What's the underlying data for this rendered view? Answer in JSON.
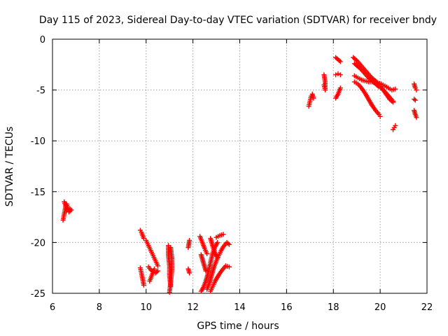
{
  "chart_data": {
    "type": "scatter",
    "title": "Day 115 of 2023, Sidereal Day-to-day VTEC variation (SDTVAR) for receiver bndy",
    "xlabel": "GPS time / hours",
    "ylabel": "SDTVAR / TECUs",
    "xlim": [
      6,
      22
    ],
    "ylim": [
      -25,
      0
    ],
    "xticks": [
      6,
      8,
      10,
      12,
      14,
      16,
      18,
      20,
      22
    ],
    "xtick_labels": [
      "6",
      "8",
      "10",
      "12",
      "14",
      "16",
      "18",
      "20",
      "22"
    ],
    "yticks": [
      0,
      -5,
      -10,
      -15,
      -20,
      -25
    ],
    "ytick_labels": [
      "0",
      "-5",
      "-10",
      "-15",
      "-20",
      "-25"
    ],
    "grid": true,
    "marker": "+",
    "color": "#ff0000",
    "series": [
      {
        "name": "SDTVAR",
        "segments": [
          [
            [
              6.45,
              -17.8
            ],
            [
              6.5,
              -17.2
            ],
            [
              6.55,
              -16.6
            ],
            [
              6.6,
              -16.2
            ],
            [
              6.65,
              -16.6
            ],
            [
              6.7,
              -16.9
            ],
            [
              6.75,
              -16.7
            ]
          ],
          [
            [
              6.5,
              -16.0
            ],
            [
              6.55,
              -16.3
            ],
            [
              6.6,
              -16.9
            ],
            [
              6.7,
              -17.0
            ],
            [
              6.8,
              -16.8
            ]
          ],
          [
            [
              9.75,
              -18.8
            ],
            [
              9.8,
              -19.0
            ],
            [
              9.85,
              -19.3
            ],
            [
              9.9,
              -19.6
            ]
          ],
          [
            [
              9.75,
              -22.5
            ],
            [
              9.8,
              -23.0
            ],
            [
              9.85,
              -23.6
            ],
            [
              9.9,
              -24.2
            ]
          ],
          [
            [
              10.0,
              -19.8
            ],
            [
              10.1,
              -20.3
            ],
            [
              10.2,
              -20.8
            ],
            [
              10.3,
              -21.3
            ],
            [
              10.4,
              -21.8
            ],
            [
              10.5,
              -22.3
            ]
          ],
          [
            [
              10.1,
              -22.4
            ],
            [
              10.2,
              -22.7
            ],
            [
              10.3,
              -22.9
            ],
            [
              10.4,
              -23.0
            ],
            [
              10.5,
              -22.8
            ]
          ],
          [
            [
              10.15,
              -23.8
            ],
            [
              10.25,
              -23.2
            ],
            [
              10.35,
              -22.6
            ]
          ],
          [
            [
              10.95,
              -20.3
            ],
            [
              10.95,
              -21.3
            ],
            [
              11.0,
              -22.3
            ],
            [
              11.0,
              -23.3
            ],
            [
              11.05,
              -24.3
            ]
          ],
          [
            [
              11.0,
              -24.9
            ],
            [
              11.05,
              -23.9
            ],
            [
              11.1,
              -22.8
            ],
            [
              11.1,
              -21.6
            ],
            [
              11.05,
              -20.5
            ]
          ],
          [
            [
              11.8,
              -20.5
            ],
            [
              11.85,
              -19.8
            ]
          ],
          [
            [
              11.8,
              -22.6
            ],
            [
              11.85,
              -23.0
            ]
          ],
          [
            [
              12.3,
              -19.4
            ],
            [
              12.4,
              -20.0
            ],
            [
              12.5,
              -20.6
            ],
            [
              12.6,
              -21.1
            ]
          ],
          [
            [
              12.35,
              -21.2
            ],
            [
              12.45,
              -22.0
            ],
            [
              12.55,
              -22.8
            ]
          ],
          [
            [
              12.35,
              -24.8
            ],
            [
              12.45,
              -24.4
            ],
            [
              12.55,
              -23.8
            ],
            [
              12.65,
              -23.0
            ],
            [
              12.75,
              -22.0
            ],
            [
              12.85,
              -21.0
            ],
            [
              12.95,
              -20.4
            ],
            [
              13.05,
              -20.0
            ]
          ],
          [
            [
              12.6,
              -24.6
            ],
            [
              12.7,
              -24.0
            ],
            [
              12.8,
              -23.2
            ],
            [
              12.9,
              -22.4
            ],
            [
              13.0,
              -21.8
            ],
            [
              13.1,
              -21.3
            ],
            [
              13.2,
              -20.8
            ],
            [
              13.3,
              -20.4
            ],
            [
              13.45,
              -20.0
            ],
            [
              13.55,
              -20.2
            ]
          ],
          [
            [
              12.75,
              -24.8
            ],
            [
              12.85,
              -24.3
            ],
            [
              12.95,
              -23.8
            ],
            [
              13.1,
              -23.2
            ],
            [
              13.25,
              -22.7
            ],
            [
              13.4,
              -22.3
            ],
            [
              13.55,
              -22.4
            ]
          ],
          [
            [
              12.75,
              -19.6
            ],
            [
              12.85,
              -20.4
            ],
            [
              12.95,
              -21.1
            ],
            [
              13.05,
              -21.5
            ]
          ],
          [
            [
              13.0,
              -19.5
            ],
            [
              13.15,
              -19.3
            ],
            [
              13.3,
              -19.2
            ]
          ],
          [
            [
              16.95,
              -6.6
            ],
            [
              17.0,
              -6.1
            ],
            [
              17.05,
              -5.6
            ],
            [
              17.1,
              -5.4
            ],
            [
              17.15,
              -5.8
            ]
          ],
          [
            [
              17.6,
              -3.5
            ],
            [
              17.65,
              -4.2
            ],
            [
              17.65,
              -5.0
            ],
            [
              17.6,
              -4.5
            ]
          ],
          [
            [
              18.1,
              -1.8
            ],
            [
              18.2,
              -2.0
            ],
            [
              18.3,
              -2.2
            ]
          ],
          [
            [
              18.1,
              -3.5
            ],
            [
              18.2,
              -3.4
            ],
            [
              18.3,
              -3.5
            ]
          ],
          [
            [
              18.1,
              -5.8
            ],
            [
              18.2,
              -5.4
            ],
            [
              18.3,
              -4.8
            ]
          ],
          [
            [
              18.85,
              -1.8
            ],
            [
              19.0,
              -2.1
            ],
            [
              19.15,
              -2.5
            ],
            [
              19.3,
              -2.9
            ],
            [
              19.45,
              -3.3
            ],
            [
              19.6,
              -3.7
            ],
            [
              19.75,
              -4.0
            ],
            [
              19.9,
              -4.3
            ],
            [
              20.05,
              -4.4
            ],
            [
              20.2,
              -4.6
            ],
            [
              20.35,
              -4.8
            ],
            [
              20.5,
              -5.0
            ],
            [
              20.65,
              -4.9
            ]
          ],
          [
            [
              18.9,
              -2.4
            ],
            [
              19.05,
              -2.7
            ],
            [
              19.2,
              -3.0
            ],
            [
              19.35,
              -3.4
            ],
            [
              19.5,
              -3.8
            ],
            [
              19.65,
              -4.1
            ],
            [
              19.8,
              -4.4
            ],
            [
              19.95,
              -4.7
            ],
            [
              20.1,
              -4.9
            ],
            [
              20.25,
              -5.3
            ],
            [
              20.4,
              -5.7
            ],
            [
              20.55,
              -6.1
            ]
          ],
          [
            [
              18.9,
              -3.6
            ],
            [
              19.05,
              -3.8
            ],
            [
              19.2,
              -4.0
            ],
            [
              19.35,
              -4.1
            ],
            [
              19.5,
              -4.2
            ],
            [
              19.65,
              -4.2
            ],
            [
              19.8,
              -4.3
            ],
            [
              19.95,
              -4.5
            ],
            [
              20.1,
              -4.9
            ],
            [
              20.25,
              -5.4
            ],
            [
              20.4,
              -5.9
            ],
            [
              20.55,
              -6.2
            ]
          ],
          [
            [
              18.9,
              -4.2
            ],
            [
              19.05,
              -4.4
            ],
            [
              19.2,
              -4.8
            ],
            [
              19.35,
              -5.3
            ],
            [
              19.5,
              -5.9
            ],
            [
              19.65,
              -6.5
            ],
            [
              19.8,
              -7.0
            ],
            [
              19.95,
              -7.4
            ],
            [
              20.0,
              -7.6
            ]
          ],
          [
            [
              20.55,
              -8.9
            ],
            [
              20.6,
              -8.7
            ],
            [
              20.65,
              -8.5
            ]
          ],
          [
            [
              21.45,
              -4.4
            ],
            [
              21.5,
              -4.8
            ],
            [
              21.55,
              -5.0
            ]
          ],
          [
            [
              21.45,
              -5.9
            ],
            [
              21.5,
              -6.0
            ]
          ],
          [
            [
              21.45,
              -7.0
            ],
            [
              21.5,
              -7.4
            ],
            [
              21.55,
              -7.7
            ]
          ]
        ]
      }
    ]
  }
}
